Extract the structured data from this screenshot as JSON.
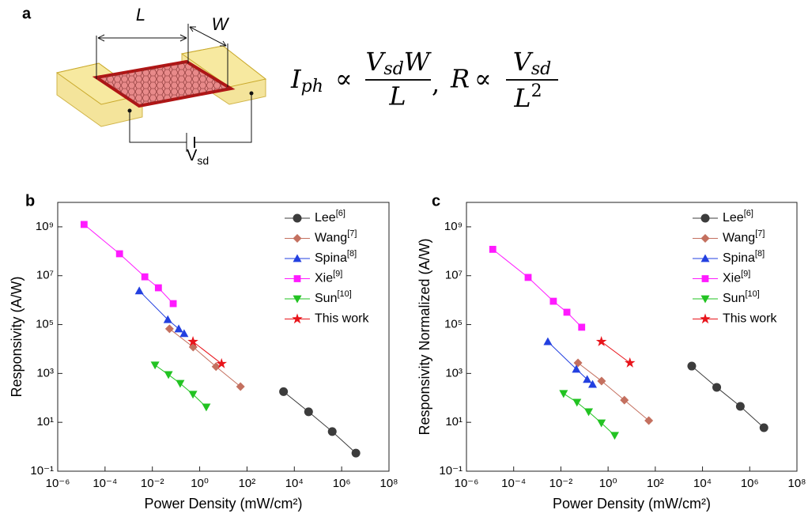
{
  "panel_a": {
    "label": "a",
    "length": "L",
    "width": "W",
    "bias": {
      "symbol": "V",
      "subscript": "sd"
    },
    "equation": {
      "lhs1": "I",
      "lhs1_sub": "ph",
      "prop": "∝",
      "num1": "V",
      "num1_sub": "sd",
      "num1_tail": "W",
      "den1": "L",
      "sep": ",",
      "lhs2": "R",
      "num2": "V",
      "num2_sub": "sd",
      "den2": "L",
      "den2_sup": "2"
    }
  },
  "chart_data": [
    {
      "type": "line",
      "panel_label": "b",
      "x_label": "Power Density (mW/cm²)",
      "y_label": "Responsivity (A/W)",
      "xscale": "log",
      "yscale": "log",
      "xlim": [
        1e-06,
        100000000.0
      ],
      "ylim": [
        0.1,
        10000000000.0
      ],
      "xticks": [
        {
          "value": 1e-06,
          "label": "10⁻⁶"
        },
        {
          "value": 0.0001,
          "label": "10⁻⁴"
        },
        {
          "value": 0.01,
          "label": "10⁻²"
        },
        {
          "value": 1,
          "label": "10⁰"
        },
        {
          "value": 100,
          "label": "10²"
        },
        {
          "value": 10000,
          "label": "10⁴"
        },
        {
          "value": 1000000,
          "label": "10⁶"
        },
        {
          "value": 100000000,
          "label": "10⁸"
        }
      ],
      "yticks": [
        {
          "value": 0.1,
          "label": "10⁻¹"
        },
        {
          "value": 10,
          "label": "10¹"
        },
        {
          "value": 1000,
          "label": "10³"
        },
        {
          "value": 100000,
          "label": "10⁵"
        },
        {
          "value": 10000000,
          "label": "10⁷"
        },
        {
          "value": 1000000000,
          "label": "10⁹"
        }
      ],
      "legend": "upper right",
      "series": [
        {
          "name": "Lee",
          "ref": "[6]",
          "color": "#3c3c3c",
          "marker": "circle",
          "x": [
            3500,
            40000,
            400000,
            4000000
          ],
          "values": [
            180,
            27,
            4.2,
            0.55
          ]
        },
        {
          "name": "Wang",
          "ref": "[7]",
          "color": "#c4705f",
          "marker": "diamond",
          "x": [
            0.053,
            0.53,
            4.9,
            53
          ],
          "values": [
            67000,
            12000,
            1900,
            290
          ]
        },
        {
          "name": "Spina",
          "ref": "[8]",
          "color": "#2340e0",
          "marker": "triangle-up",
          "x": [
            0.0028,
            0.045,
            0.13,
            0.22
          ],
          "values": [
            2400000,
            160000,
            67000,
            43000
          ]
        },
        {
          "name": "Xie",
          "ref": "[9]",
          "color": "#ff1aff",
          "marker": "square",
          "x": [
            1.3e-05,
            0.00041,
            0.0048,
            0.018,
            0.076
          ],
          "values": [
            1250000000,
            79000000,
            9000000,
            3200000,
            720000
          ]
        },
        {
          "name": "Sun",
          "ref": "[10]",
          "color": "#22c322",
          "marker": "triangle-down",
          "x": [
            0.013,
            0.048,
            0.15,
            0.52,
            1.9
          ],
          "values": [
            2200,
            890,
            390,
            140,
            42
          ]
        },
        {
          "name": "This work",
          "color": "#e8141b",
          "marker": "star",
          "x": [
            0.52,
            8.4
          ],
          "values": [
            20000,
            2500
          ]
        }
      ]
    },
    {
      "type": "line",
      "panel_label": "c",
      "x_label": "Power Density (mW/cm²)",
      "y_label": "Responsivity Normalized (A/W)",
      "xscale": "log",
      "yscale": "log",
      "xlim": [
        1e-06,
        100000000.0
      ],
      "ylim": [
        0.1,
        10000000000.0
      ],
      "xticks": [
        {
          "value": 1e-06,
          "label": "10⁻⁶"
        },
        {
          "value": 0.0001,
          "label": "10⁻⁴"
        },
        {
          "value": 0.01,
          "label": "10⁻²"
        },
        {
          "value": 1,
          "label": "10⁰"
        },
        {
          "value": 100,
          "label": "10²"
        },
        {
          "value": 10000,
          "label": "10⁴"
        },
        {
          "value": 1000000,
          "label": "10⁶"
        },
        {
          "value": 100000000,
          "label": "10⁸"
        }
      ],
      "yticks": [
        {
          "value": 0.1,
          "label": "10⁻¹"
        },
        {
          "value": 10,
          "label": "10¹"
        },
        {
          "value": 1000,
          "label": "10³"
        },
        {
          "value": 100000,
          "label": "10⁵"
        },
        {
          "value": 10000000,
          "label": "10⁷"
        },
        {
          "value": 1000000000,
          "label": "10⁹"
        }
      ],
      "legend": "upper right",
      "series": [
        {
          "name": "Lee",
          "ref": "[6]",
          "color": "#3c3c3c",
          "marker": "circle",
          "x": [
            3500,
            40000,
            400000,
            4000000
          ],
          "values": [
            2000,
            270,
            45,
            6
          ]
        },
        {
          "name": "Wang",
          "ref": "[7]",
          "color": "#c4705f",
          "marker": "diamond",
          "x": [
            0.053,
            0.53,
            4.9,
            53
          ],
          "values": [
            2700,
            490,
            81,
            11.8
          ]
        },
        {
          "name": "Spina",
          "ref": "[8]",
          "color": "#2340e0",
          "marker": "triangle-up",
          "x": [
            0.0028,
            0.045,
            0.13,
            0.22
          ],
          "values": [
            20000,
            1500,
            570,
            360
          ]
        },
        {
          "name": "Xie",
          "ref": "[9]",
          "color": "#ff1aff",
          "marker": "square",
          "x": [
            1.3e-05,
            0.00041,
            0.0048,
            0.018,
            0.076
          ],
          "values": [
            120000000,
            8500000,
            900000,
            320000,
            78000
          ]
        },
        {
          "name": "Sun",
          "ref": "[10]",
          "color": "#22c322",
          "marker": "triangle-down",
          "x": [
            0.013,
            0.048,
            0.15,
            0.52,
            1.9
          ],
          "values": [
            150,
            66,
            27,
            9.4,
            2.9
          ]
        },
        {
          "name": "This work",
          "color": "#e8141b",
          "marker": "star",
          "x": [
            0.52,
            8.4
          ],
          "values": [
            20000,
            2700
          ]
        }
      ]
    }
  ]
}
